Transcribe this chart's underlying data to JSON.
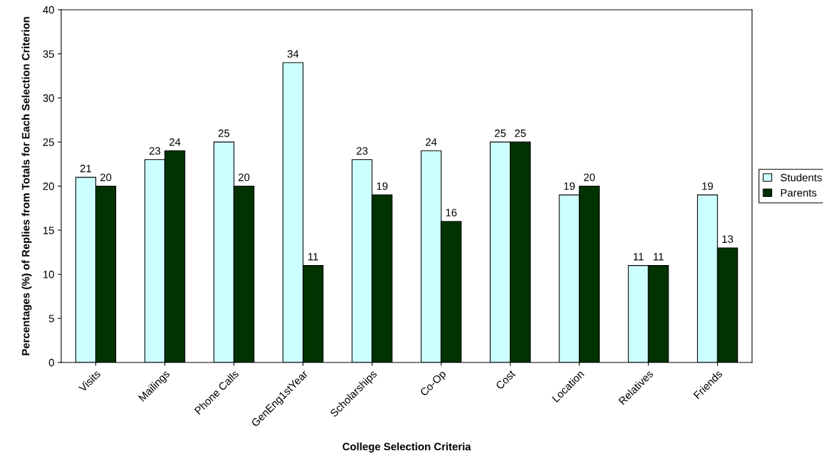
{
  "chart_data": {
    "type": "bar",
    "xlabel": "College Selection Criteria",
    "ylabel": "Percentages (%) of Replies from Totals for Each Selection Criterion",
    "categories": [
      "Visits",
      "Mailings",
      "Phone Calls",
      "GenEng1stYear",
      "Scholarships",
      "Co-Op",
      "Cost",
      "Location",
      "Relatives",
      "Friends"
    ],
    "series": [
      {
        "name": "Students",
        "color": "#ccffff",
        "values": [
          21,
          23,
          25,
          34,
          23,
          24,
          25,
          19,
          11,
          19
        ]
      },
      {
        "name": "Parents",
        "color": "#003300",
        "values": [
          20,
          24,
          20,
          11,
          19,
          16,
          25,
          20,
          11,
          13
        ]
      }
    ],
    "ylim": [
      0,
      40
    ],
    "yticks": [
      0,
      5,
      10,
      15,
      20,
      25,
      30,
      35,
      40
    ],
    "data_labels": true,
    "legend": "right",
    "grid": false
  }
}
